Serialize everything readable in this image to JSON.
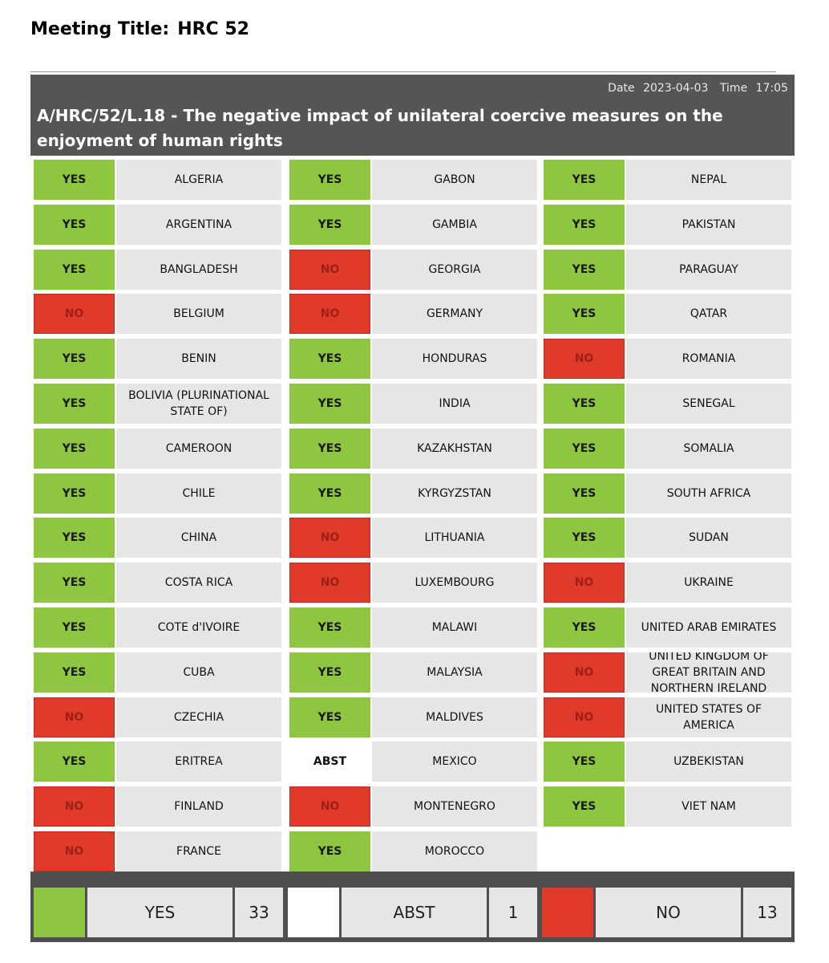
{
  "meeting": {
    "label": "Meeting Title:",
    "value": "HRC 52"
  },
  "header": {
    "date_label": "Date",
    "date": "2023-04-03",
    "time_label": "Time",
    "time": "17:05",
    "title": "A/HRC/52/L.18 - The negative impact of unilateral coercive measures on the enjoyment of human rights"
  },
  "columns": [
    [
      {
        "vote": "YES",
        "country": "ALGERIA"
      },
      {
        "vote": "YES",
        "country": "ARGENTINA"
      },
      {
        "vote": "YES",
        "country": "BANGLADESH"
      },
      {
        "vote": "NO",
        "country": "BELGIUM"
      },
      {
        "vote": "YES",
        "country": "BENIN"
      },
      {
        "vote": "YES",
        "country": "BOLIVIA (PLURINATIONAL STATE OF)"
      },
      {
        "vote": "YES",
        "country": "CAMEROON"
      },
      {
        "vote": "YES",
        "country": "CHILE"
      },
      {
        "vote": "YES",
        "country": "CHINA"
      },
      {
        "vote": "YES",
        "country": "COSTA RICA"
      },
      {
        "vote": "YES",
        "country": "COTE d'IVOIRE"
      },
      {
        "vote": "YES",
        "country": "CUBA"
      },
      {
        "vote": "NO",
        "country": "CZECHIA"
      },
      {
        "vote": "YES",
        "country": "ERITREA"
      },
      {
        "vote": "NO",
        "country": "FINLAND"
      },
      {
        "vote": "NO",
        "country": "FRANCE"
      }
    ],
    [
      {
        "vote": "YES",
        "country": "GABON"
      },
      {
        "vote": "YES",
        "country": "GAMBIA"
      },
      {
        "vote": "NO",
        "country": "GEORGIA"
      },
      {
        "vote": "NO",
        "country": "GERMANY"
      },
      {
        "vote": "YES",
        "country": "HONDURAS"
      },
      {
        "vote": "YES",
        "country": "INDIA"
      },
      {
        "vote": "YES",
        "country": "KAZAKHSTAN"
      },
      {
        "vote": "YES",
        "country": "KYRGYZSTAN"
      },
      {
        "vote": "NO",
        "country": "LITHUANIA"
      },
      {
        "vote": "NO",
        "country": "LUXEMBOURG"
      },
      {
        "vote": "YES",
        "country": "MALAWI"
      },
      {
        "vote": "YES",
        "country": "MALAYSIA"
      },
      {
        "vote": "YES",
        "country": "MALDIVES"
      },
      {
        "vote": "ABST",
        "country": "MEXICO"
      },
      {
        "vote": "NO",
        "country": "MONTENEGRO"
      },
      {
        "vote": "YES",
        "country": "MOROCCO"
      }
    ],
    [
      {
        "vote": "YES",
        "country": "NEPAL"
      },
      {
        "vote": "YES",
        "country": "PAKISTAN"
      },
      {
        "vote": "YES",
        "country": "PARAGUAY"
      },
      {
        "vote": "YES",
        "country": "QATAR"
      },
      {
        "vote": "NO",
        "country": "ROMANIA"
      },
      {
        "vote": "YES",
        "country": "SENEGAL"
      },
      {
        "vote": "YES",
        "country": "SOMALIA"
      },
      {
        "vote": "YES",
        "country": "SOUTH AFRICA"
      },
      {
        "vote": "YES",
        "country": "SUDAN"
      },
      {
        "vote": "NO",
        "country": "UKRAINE"
      },
      {
        "vote": "YES",
        "country": "UNITED ARAB EMIRATES"
      },
      {
        "vote": "NO",
        "country": "UNITED KINGDOM OF GREAT BRITAIN AND NORTHERN IRELAND"
      },
      {
        "vote": "NO",
        "country": "UNITED STATES OF AMERICA"
      },
      {
        "vote": "YES",
        "country": "UZBEKISTAN"
      },
      {
        "vote": "YES",
        "country": "VIET NAM"
      }
    ]
  ],
  "summary": [
    {
      "kind": "yes",
      "label": "YES",
      "count": "33"
    },
    {
      "kind": "abst",
      "label": "ABST",
      "count": "1"
    },
    {
      "kind": "no",
      "label": "NO",
      "count": "13"
    }
  ],
  "colors": {
    "yes": "#8dc63f",
    "no": "#e03a2a",
    "abst": "#ffffff",
    "header": "#555555",
    "cell": "#e6e6e6"
  }
}
